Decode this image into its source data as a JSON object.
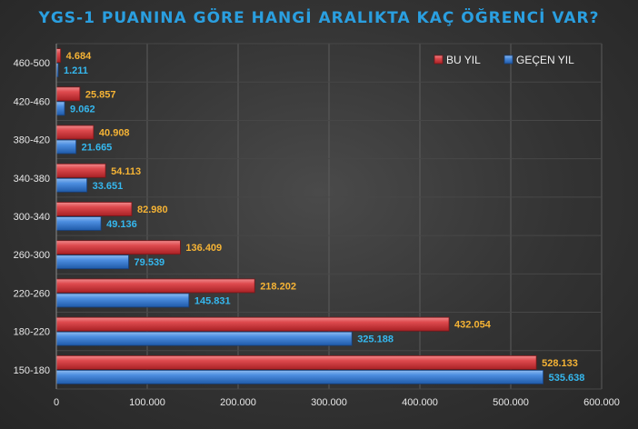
{
  "chart_data": {
    "type": "bar",
    "orientation": "horizontal",
    "title": "YGS-1 PUANINA GÖRE HANGİ ARALIKTA KAÇ ÖĞRENCİ VAR?",
    "categories": [
      "150-180",
      "180-220",
      "220-260",
      "260-300",
      "300-340",
      "340-380",
      "380-420",
      "420-460",
      "460-500"
    ],
    "series": [
      {
        "name": "BU YIL",
        "color": "#d9383c",
        "label_color": "#f5b335",
        "values": [
          528133,
          432054,
          218202,
          136409,
          82980,
          54113,
          40908,
          25857,
          4684
        ],
        "labels": [
          "528.133",
          "432.054",
          "218.202",
          "136.409",
          "82.980",
          "54.113",
          "40.908",
          "25.857",
          "4.684"
        ]
      },
      {
        "name": "GEÇEN YIL",
        "color": "#3a7fd4",
        "label_color": "#35b8ef",
        "values": [
          535638,
          325188,
          145831,
          79539,
          49136,
          33651,
          21665,
          9062,
          1211
        ],
        "labels": [
          "535.638",
          "325.188",
          "145.831",
          "79.539",
          "49.136",
          "33.651",
          "21.665",
          "9.062",
          "1.211"
        ]
      }
    ],
    "xlim": [
      0,
      600000
    ],
    "x_ticks": [
      0,
      100000,
      200000,
      300000,
      400000,
      500000,
      600000
    ],
    "x_tick_labels": [
      "0",
      "100.000",
      "200.000",
      "300.000",
      "400.000",
      "500.000",
      "600.000"
    ],
    "xlabel": "",
    "ylabel": "",
    "grid": "vertical",
    "legend_position": "top-right"
  }
}
